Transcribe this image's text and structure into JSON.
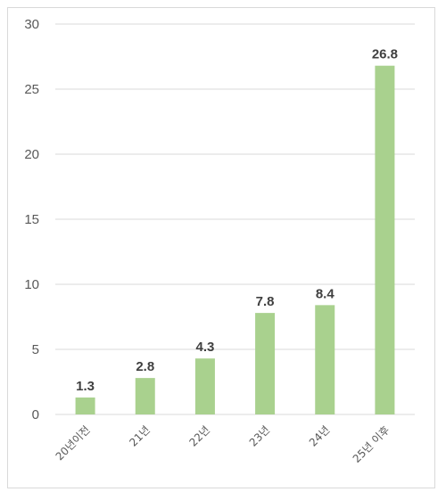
{
  "chart_data": {
    "type": "bar",
    "title": "",
    "xlabel": "",
    "ylabel": "",
    "categories": [
      "20년이전",
      "21년",
      "22년",
      "23년",
      "24년",
      "25년 이후"
    ],
    "values": [
      1.3,
      2.8,
      4.3,
      7.8,
      8.4,
      26.8
    ],
    "data_labels": [
      "1.3",
      "2.8",
      "4.3",
      "7.8",
      "8.4",
      "26.8"
    ],
    "ylim": [
      0,
      30
    ],
    "yticks": [
      0,
      5,
      10,
      15,
      20,
      25,
      30
    ],
    "ytick_labels": [
      "0",
      "5",
      "10",
      "15",
      "20",
      "25",
      "30"
    ],
    "grid": true,
    "legend": "none",
    "bar_color": "#a9d18e",
    "grid_color": "#d9d9d9",
    "label_color": "#404040",
    "tick_color": "#595959"
  }
}
